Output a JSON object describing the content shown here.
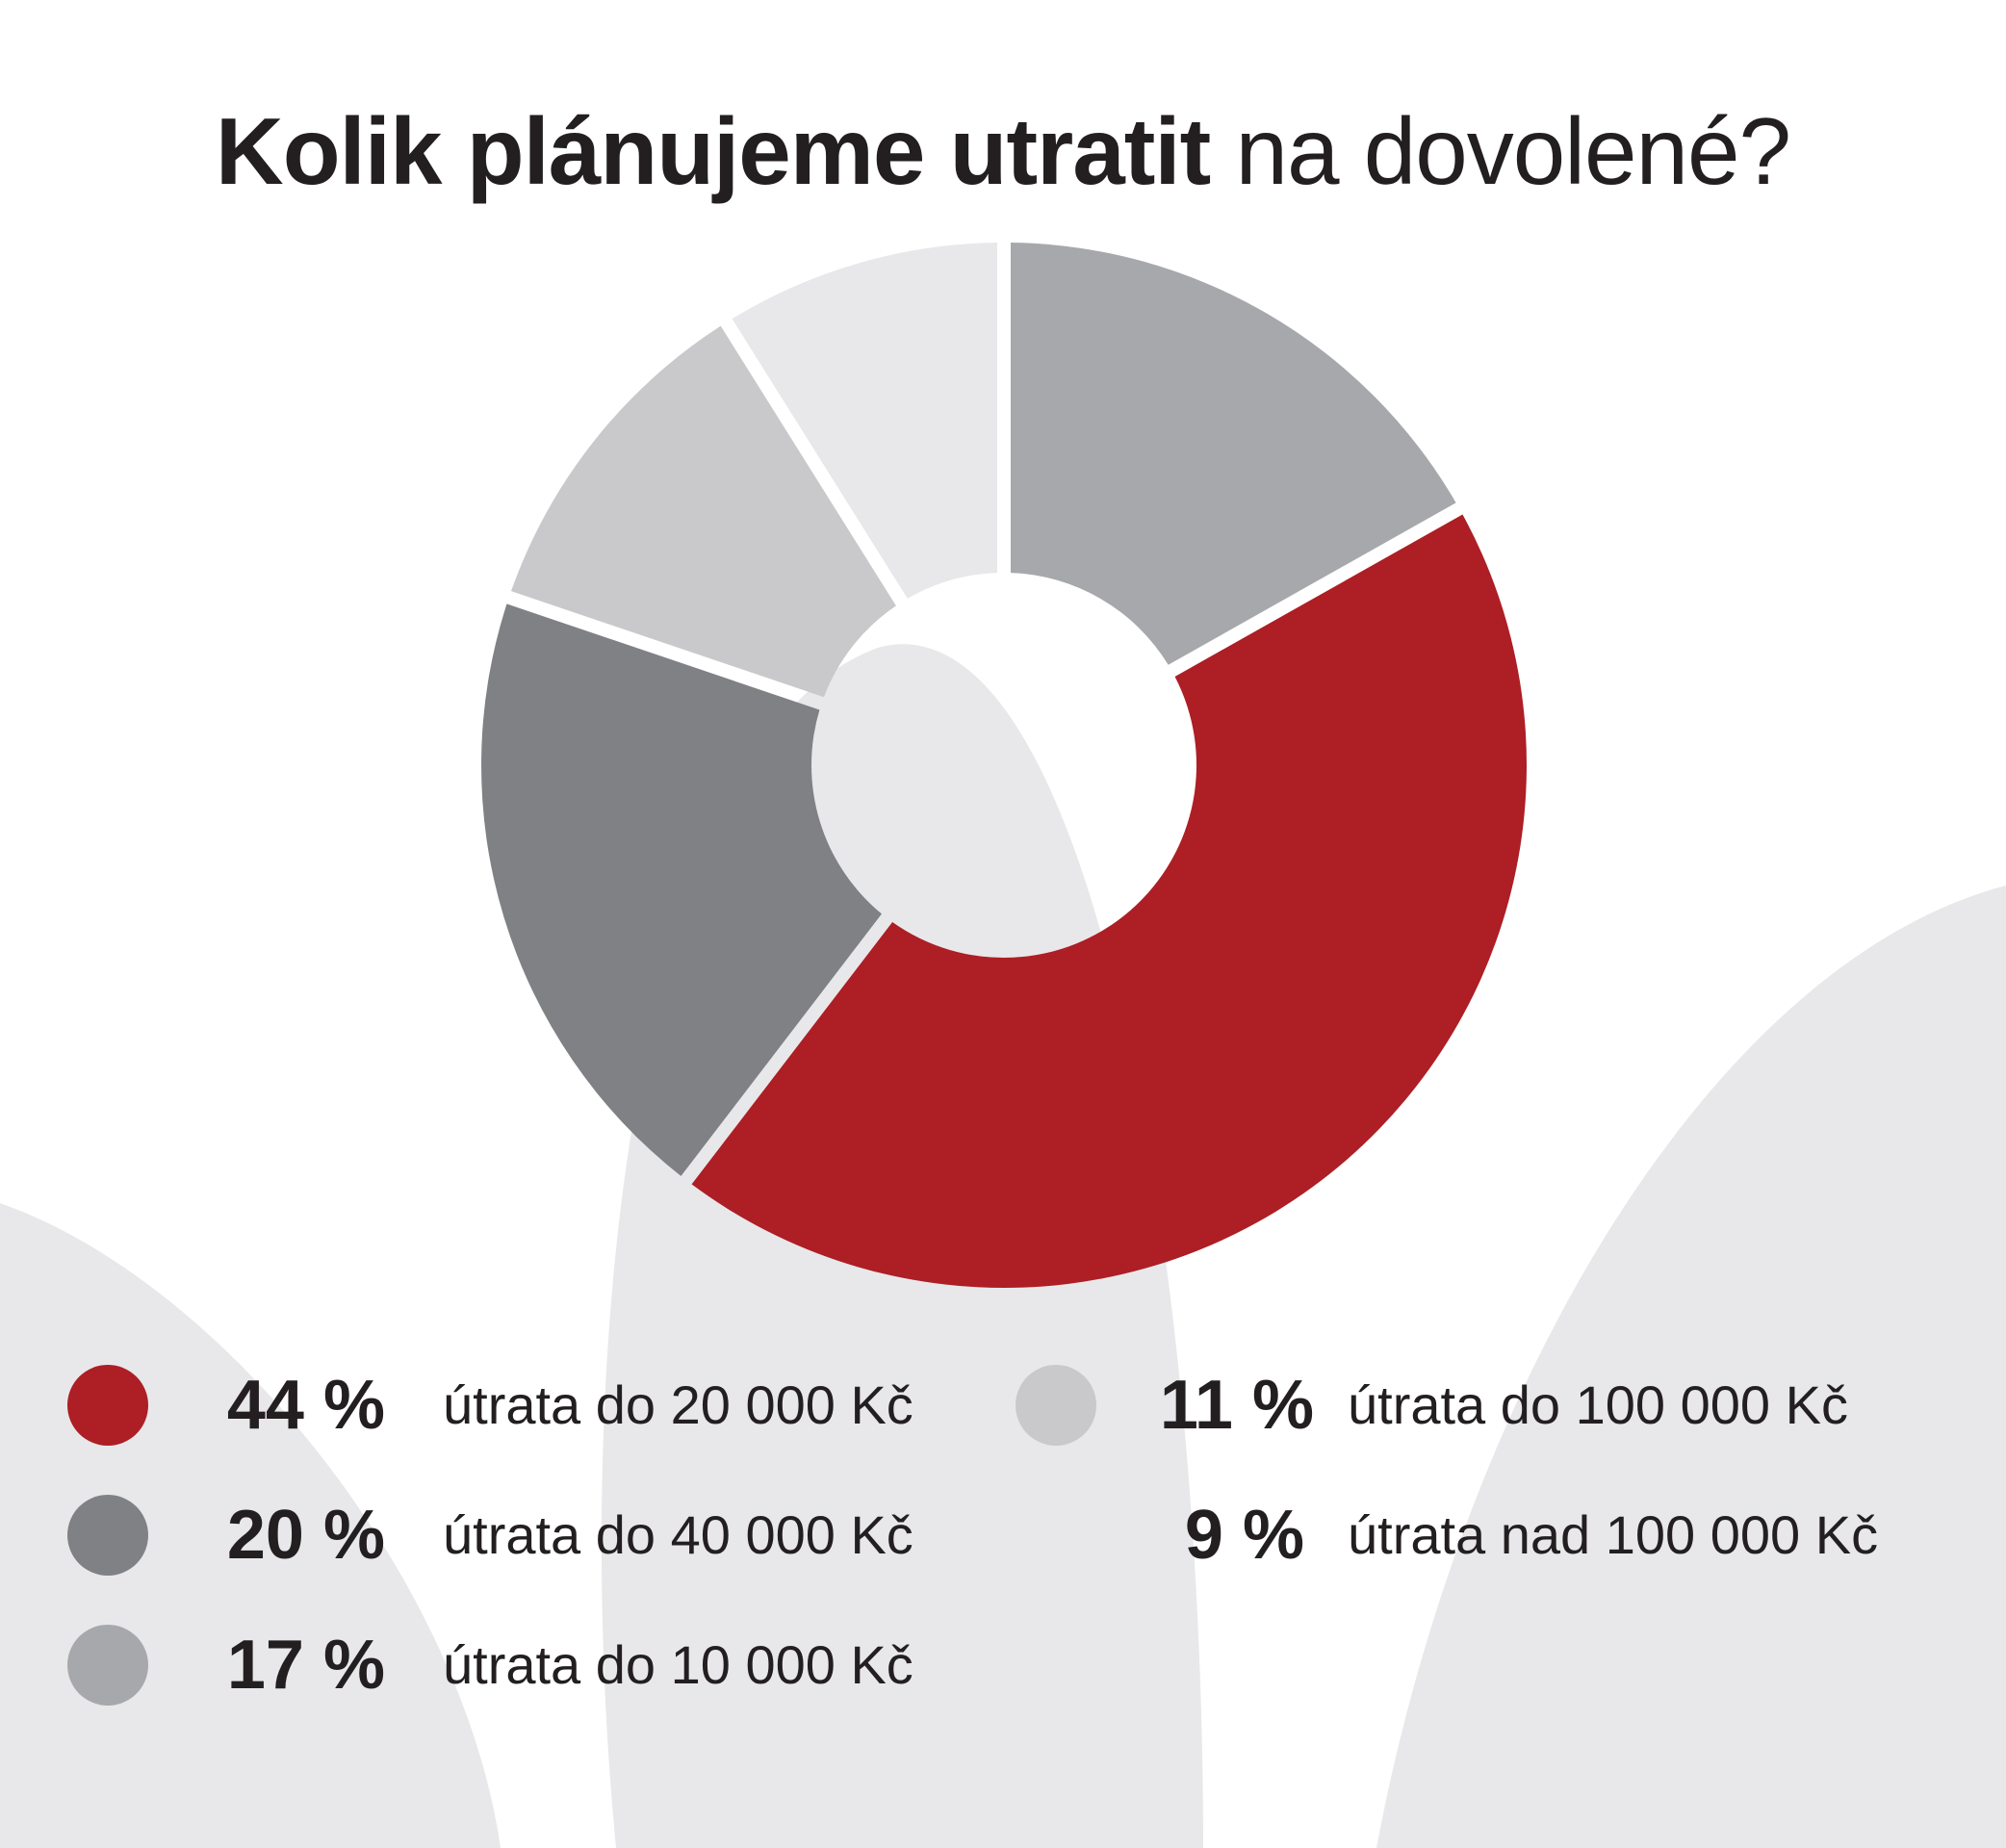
{
  "chart_data": {
    "type": "pie",
    "title_bold": "Kolik plánujeme utratit",
    "title_regular": " na dovolené?",
    "slices": [
      {
        "percent_label": "44 %",
        "value": 44,
        "label": "útrata do 20 000 Kč",
        "color": "#ad1e25"
      },
      {
        "percent_label": "20 %",
        "value": 20,
        "label": "útrata do 40 000 Kč",
        "color": "#808184"
      },
      {
        "percent_label": "11 %",
        "value": 11,
        "label": "útrata do 100 000 Kč",
        "color": "#c9c9cb"
      },
      {
        "percent_label": "9 %",
        "value": 9,
        "label": "útrata nad 100 000 Kč",
        "color": "#e8e8ea"
      },
      {
        "percent_label": "17 %",
        "value": 17,
        "label": "útrata do 10 000 Kč",
        "color": "#a7a8ab"
      }
    ],
    "legend_placement": "bottom"
  },
  "background": {
    "shape_color": "#e8e8ea"
  }
}
